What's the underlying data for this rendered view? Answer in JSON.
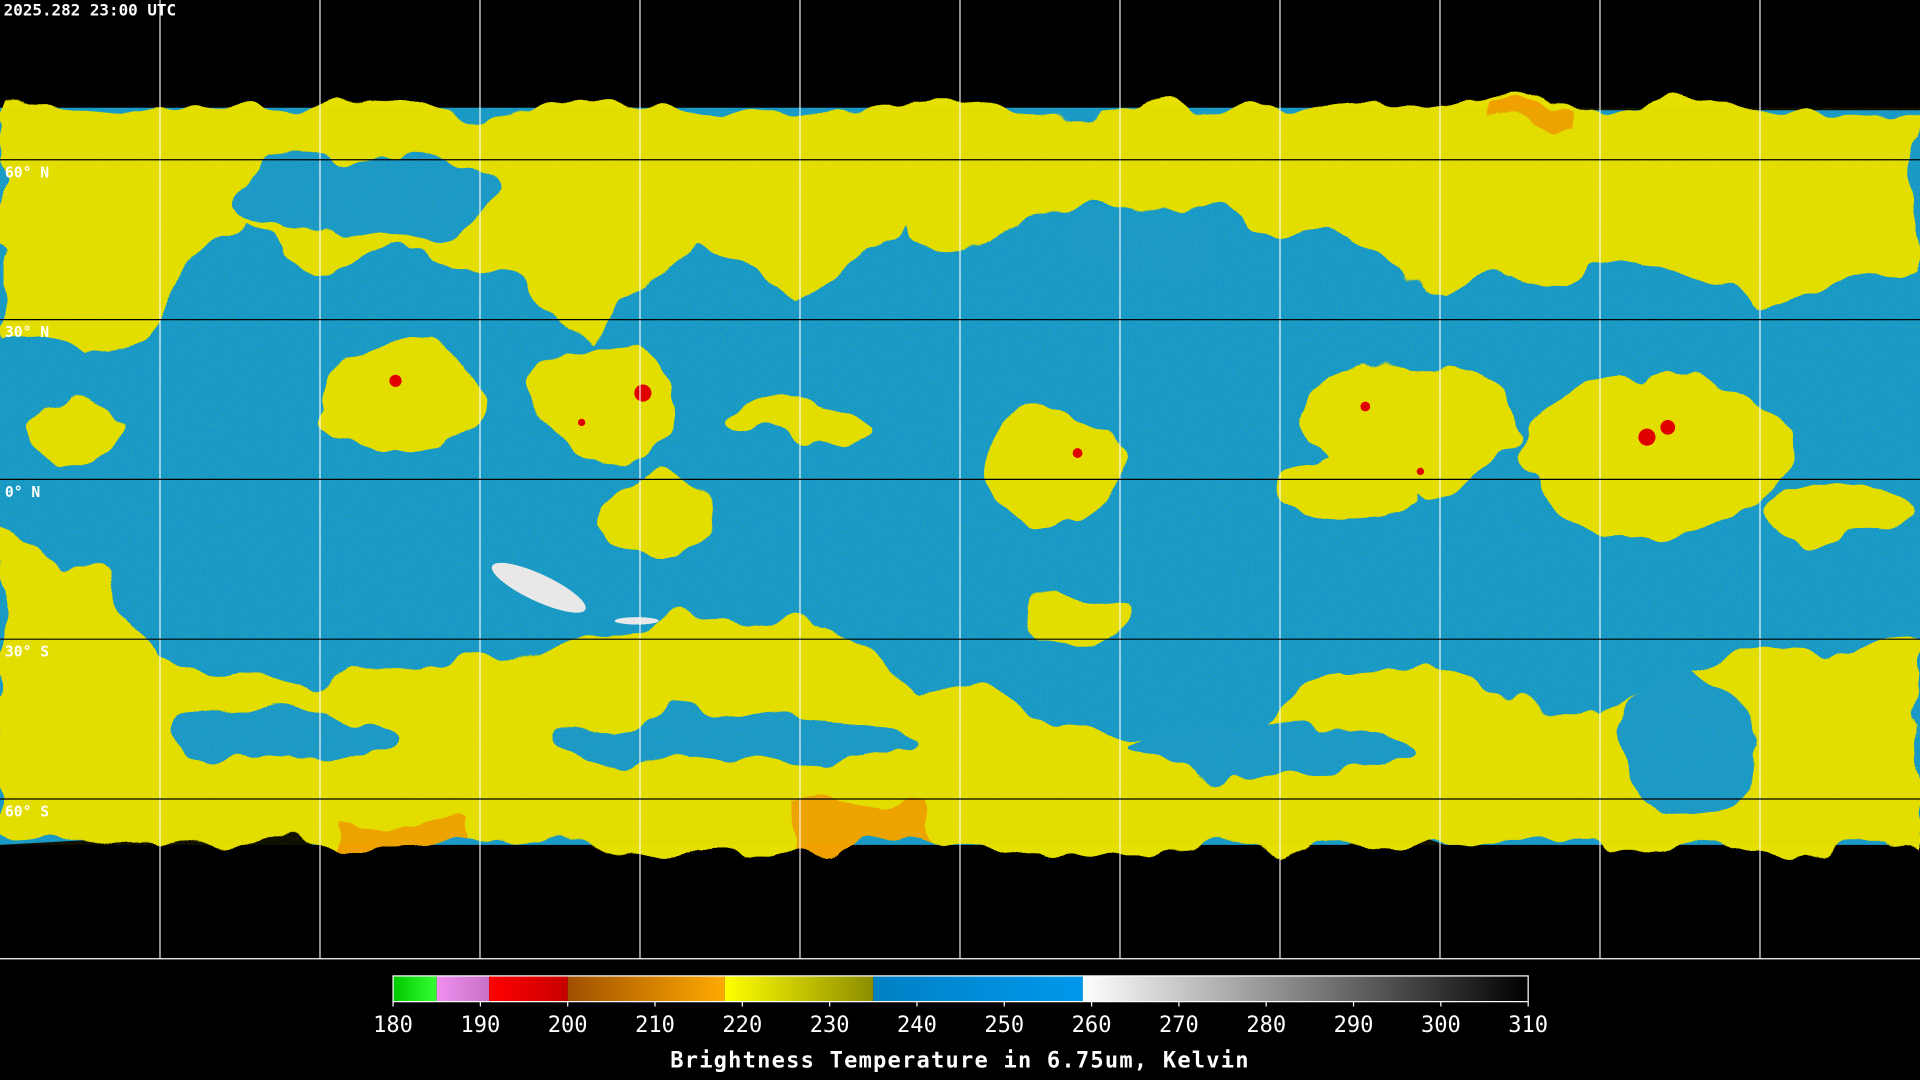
{
  "header": {
    "timestamp": "2025.282 23:00 UTC"
  },
  "map": {
    "latitudes": [
      {
        "value": 60,
        "label": "60° N"
      },
      {
        "value": 30,
        "label": "30° N"
      },
      {
        "value": 0,
        "label": "0° N"
      },
      {
        "value": -30,
        "label": "30° S"
      },
      {
        "value": -60,
        "label": "60° S"
      }
    ]
  },
  "colorbar": {
    "range": [
      180,
      310
    ],
    "ticks": [
      180,
      190,
      200,
      210,
      220,
      230,
      240,
      250,
      260,
      270,
      280,
      290,
      300,
      310
    ],
    "label": "Brightness Temperature in 6.75um, Kelvin",
    "segments": [
      {
        "from": 180,
        "to": 185,
        "color_start": "#00c800",
        "color_end": "#33ff33"
      },
      {
        "from": 185,
        "to": 191,
        "color_start": "#f090f0",
        "color_end": "#c870c8"
      },
      {
        "from": 191,
        "to": 200,
        "color_start": "#ff0000",
        "color_end": "#c80000"
      },
      {
        "from": 200,
        "to": 218,
        "color_start": "#a05000",
        "color_end": "#ffaa00"
      },
      {
        "from": 218,
        "to": 235,
        "color_start": "#ffff00",
        "color_end": "#8c8c00"
      },
      {
        "from": 235,
        "to": 259,
        "color_start": "#0080c4",
        "color_end": "#0098ec"
      },
      {
        "from": 259,
        "to": 310,
        "color_start": "#ffffff",
        "color_end": "#000000"
      }
    ]
  }
}
